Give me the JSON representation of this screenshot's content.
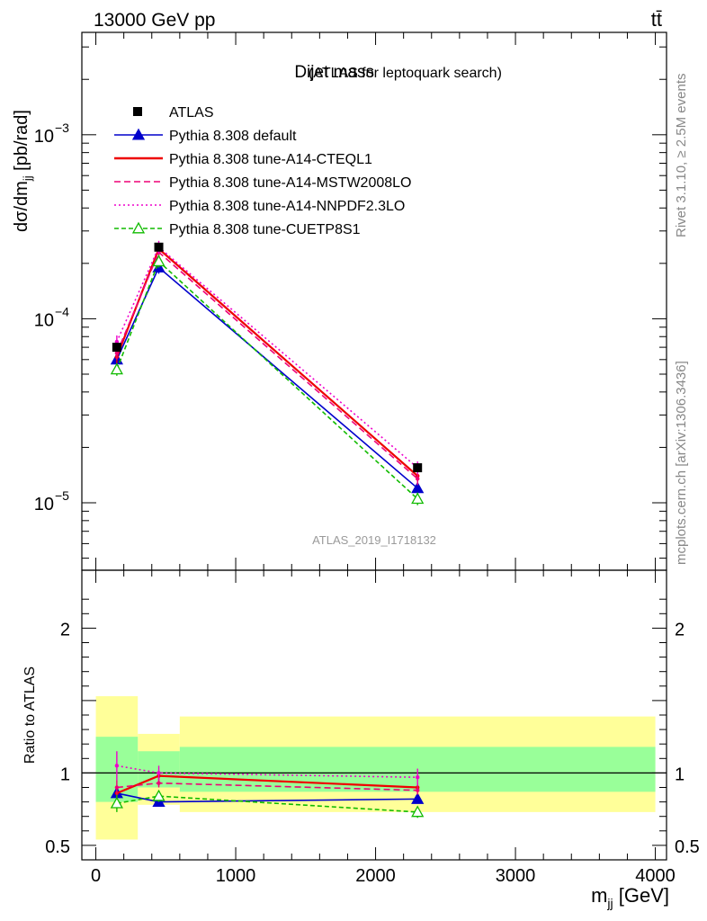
{
  "header": {
    "energy_label": "13000 GeV pp",
    "process_label": "tt̄"
  },
  "side_labels": {
    "rivet": "Rivet 3.1.10, ≥ 2.5M events",
    "source": "mcplots.cern.ch [arXiv:1306.3436]"
  },
  "chart_data": {
    "type": "line",
    "title": "Dijet mass",
    "subtitle": "(ATLAS for leptoquark search)",
    "watermark": "ATLAS_2019_I1718132",
    "xlabel": "m_jj [GeV]",
    "ylabel": "dσ/dm_jj [pb/rad]",
    "ratio_ylabel": "Ratio to ATLAS",
    "x_ticks": [
      "0",
      "1000",
      "2000",
      "3000",
      "4000"
    ],
    "xlim": [
      -100,
      4080
    ],
    "ylim": [
      4.3e-06,
      0.0036
    ],
    "y_scale": "log",
    "ratio_ylim": [
      0.4,
      2.4
    ],
    "ratio_ticks": [
      "0.5",
      "1",
      "2"
    ],
    "y_ticks": [
      {
        "base": "10",
        "exp": "−3",
        "value": 0.001
      },
      {
        "base": "10",
        "exp": "−4",
        "value": 0.0001
      },
      {
        "base": "10",
        "exp": "−5",
        "value": 1e-05
      }
    ],
    "bins": [
      {
        "lo": 0,
        "hi": 300,
        "x": 150
      },
      {
        "lo": 300,
        "hi": 600,
        "x": 450
      },
      {
        "lo": 600,
        "hi": 4000,
        "x": 2300
      }
    ],
    "data": {
      "name": "ATLAS",
      "y": [
        7e-05,
        0.000245,
        1.55e-05
      ],
      "ratio_band_inner": [
        [
          0.8,
          1.25
        ],
        [
          0.9,
          1.15
        ],
        [
          0.87,
          1.18
        ]
      ],
      "ratio_band_outer": [
        [
          0.54,
          1.53
        ],
        [
          0.78,
          1.27
        ],
        [
          0.73,
          1.39
        ]
      ]
    },
    "series": [
      {
        "name": "Pythia 8.308 default",
        "color": "#0000cc",
        "dash": "",
        "marker": "triangle-filled",
        "y": [
          6e-05,
          0.00019,
          1.2e-05
        ],
        "ratio": [
          0.86,
          0.8,
          0.82
        ],
        "ratio_err": [
          0.05,
          0.03,
          0.03
        ]
      },
      {
        "name": "Pythia 8.308 tune-A14-CTEQL1",
        "color": "#ee0000",
        "dash": "",
        "marker": "none",
        "y": [
          6.2e-05,
          0.00024,
          1.4e-05
        ],
        "ratio": [
          0.86,
          0.98,
          0.9
        ],
        "ratio_err": [
          0.05,
          0.03,
          0.03
        ]
      },
      {
        "name": "Pythia 8.308 tune-A14-MSTW2008LO",
        "color": "#ee0077",
        "dash": "7,4",
        "marker": "none",
        "y": [
          6.5e-05,
          0.00023,
          1.35e-05
        ],
        "ratio": [
          0.9,
          0.93,
          0.88
        ],
        "ratio_err": [
          0.05,
          0.03,
          0.03
        ]
      },
      {
        "name": "Pythia 8.308 tune-A14-NNPDF2.3LO",
        "color": "#ee00cc",
        "dash": "2,3",
        "marker": "none",
        "y": [
          7.5e-05,
          0.000245,
          1.55e-05
        ],
        "ratio": [
          1.05,
          1.0,
          0.97
        ],
        "ratio_err": [
          0.1,
          0.05,
          0.06
        ]
      },
      {
        "name": "Pythia 8.308 tune-CUETP8S1",
        "color": "#11bb00",
        "dash": "5,3",
        "marker": "triangle-open",
        "y": [
          5.3e-05,
          0.000205,
          1.05e-05
        ],
        "ratio": [
          0.79,
          0.84,
          0.73
        ],
        "ratio_err": [
          0.06,
          0.04,
          0.04
        ]
      }
    ]
  }
}
